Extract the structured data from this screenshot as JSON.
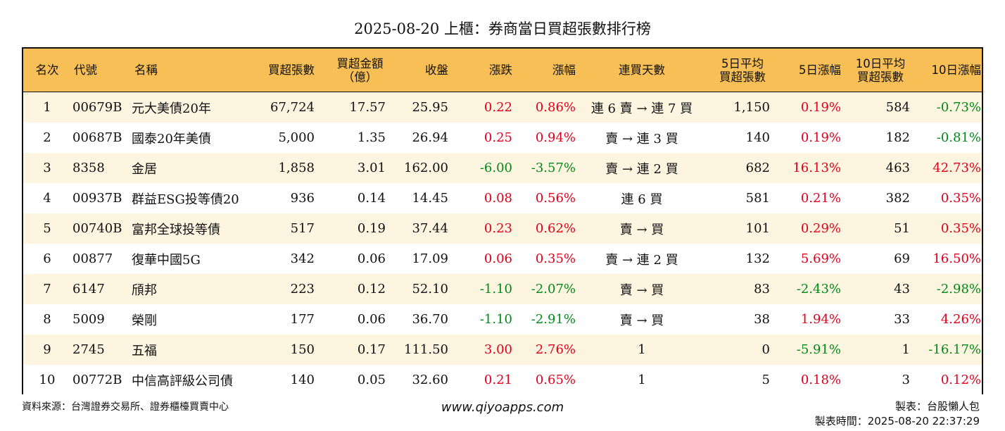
{
  "title": "2025-08-20 上櫃：券商當日買超張數排行榜",
  "headers": {
    "rank": "名次",
    "code": "代號",
    "name": "名稱",
    "vol": "買超張數",
    "amt_l1": "買超金額",
    "amt_l2": "（億）",
    "close": "收盤",
    "chg": "漲跌",
    "pct": "漲幅",
    "days": "連買天數",
    "avg5_l1": "5日平均",
    "avg5_l2": "買超張數",
    "pct5": "5日漲幅",
    "avg10_l1": "10日平均",
    "avg10_l2": "買超張數",
    "pct10": "10日漲幅"
  },
  "rows": [
    {
      "rank": "1",
      "code": "00679B",
      "name": "元大美債20年",
      "vol": "67,724",
      "amt": "17.57",
      "close": "25.95",
      "chg": "0.22",
      "pct": "0.86%",
      "days": "連 6 賣 → 連 7 買",
      "avg5": "1,150",
      "pct5": "0.19%",
      "avg10": "584",
      "pct10": "-0.73%"
    },
    {
      "rank": "2",
      "code": "00687B",
      "name": "國泰20年美債",
      "vol": "5,000",
      "amt": "1.35",
      "close": "26.94",
      "chg": "0.25",
      "pct": "0.94%",
      "days": "賣 → 連 3 買",
      "avg5": "140",
      "pct5": "0.19%",
      "avg10": "182",
      "pct10": "-0.81%"
    },
    {
      "rank": "3",
      "code": "8358",
      "name": "金居",
      "vol": "1,858",
      "amt": "3.01",
      "close": "162.00",
      "chg": "-6.00",
      "pct": "-3.57%",
      "days": "賣 → 連 2 買",
      "avg5": "682",
      "pct5": "16.13%",
      "avg10": "463",
      "pct10": "42.73%"
    },
    {
      "rank": "4",
      "code": "00937B",
      "name": "群益ESG投等債20",
      "vol": "936",
      "amt": "0.14",
      "close": "14.45",
      "chg": "0.08",
      "pct": "0.56%",
      "days": "連 6 買",
      "avg5": "581",
      "pct5": "0.21%",
      "avg10": "382",
      "pct10": "0.35%"
    },
    {
      "rank": "5",
      "code": "00740B",
      "name": "富邦全球投等債",
      "vol": "517",
      "amt": "0.19",
      "close": "37.44",
      "chg": "0.23",
      "pct": "0.62%",
      "days": "賣 → 買",
      "avg5": "101",
      "pct5": "0.29%",
      "avg10": "51",
      "pct10": "0.35%"
    },
    {
      "rank": "6",
      "code": "00877",
      "name": "復華中國5G",
      "vol": "342",
      "amt": "0.06",
      "close": "17.09",
      "chg": "0.06",
      "pct": "0.35%",
      "days": "賣 → 連 2 買",
      "avg5": "132",
      "pct5": "5.69%",
      "avg10": "69",
      "pct10": "16.50%"
    },
    {
      "rank": "7",
      "code": "6147",
      "name": "頎邦",
      "vol": "223",
      "amt": "0.12",
      "close": "52.10",
      "chg": "-1.10",
      "pct": "-2.07%",
      "days": "賣 → 買",
      "avg5": "83",
      "pct5": "-2.43%",
      "avg10": "43",
      "pct10": "-2.98%"
    },
    {
      "rank": "8",
      "code": "5009",
      "name": "榮剛",
      "vol": "177",
      "amt": "0.06",
      "close": "36.70",
      "chg": "-1.10",
      "pct": "-2.91%",
      "days": "賣 → 買",
      "avg5": "38",
      "pct5": "1.94%",
      "avg10": "33",
      "pct10": "4.26%"
    },
    {
      "rank": "9",
      "code": "2745",
      "name": "五福",
      "vol": "150",
      "amt": "0.17",
      "close": "111.50",
      "chg": "3.00",
      "pct": "2.76%",
      "days": "1",
      "avg5": "0",
      "pct5": "-5.91%",
      "avg10": "1",
      "pct10": "-16.17%"
    },
    {
      "rank": "10",
      "code": "00772B",
      "name": "中信高評級公司債",
      "vol": "140",
      "amt": "0.05",
      "close": "32.60",
      "chg": "0.21",
      "pct": "0.65%",
      "days": "1",
      "avg5": "5",
      "pct5": "0.18%",
      "avg10": "3",
      "pct10": "0.12%"
    }
  ],
  "colors": {
    "up": "#e0001b",
    "down": "#00891a",
    "header_bg": "#f7bf55",
    "odd_row_bg": "#fdf5e0"
  },
  "footer": {
    "source": "資料來源：台灣證券交易所、證券櫃檯買賣中心",
    "site": "www.qiyoapps.com",
    "author": "製表：台股懶人包",
    "time": "製表時間：2025-08-20 22:37:29"
  }
}
